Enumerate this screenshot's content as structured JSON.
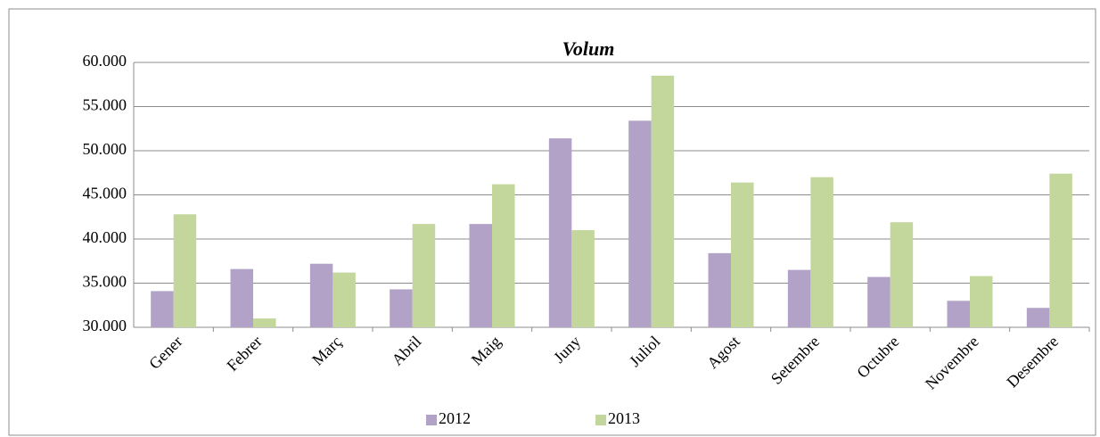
{
  "chart_data": {
    "type": "bar",
    "title": "Volum",
    "categories": [
      "Gener",
      "Febrer",
      "Març",
      "Abril",
      "Maig",
      "Juny",
      "Juliol",
      "Agost",
      "Setembre",
      "Octubre",
      "Novembre",
      "Desembre"
    ],
    "series": [
      {
        "name": "2012",
        "color": "#b3a2c7",
        "values": [
          34100,
          36600,
          37200,
          34300,
          41700,
          51400,
          53400,
          38400,
          36500,
          35700,
          33000,
          32200
        ]
      },
      {
        "name": "2013",
        "color": "#c3d69b",
        "values": [
          42800,
          31000,
          36200,
          41700,
          46200,
          41000,
          58500,
          46400,
          47000,
          41900,
          35800,
          47400
        ]
      }
    ],
    "ylim": [
      30000,
      60000
    ],
    "yticks": [
      {
        "value": 30000,
        "label": "30.000"
      },
      {
        "value": 35000,
        "label": "35.000"
      },
      {
        "value": 40000,
        "label": "40.000"
      },
      {
        "value": 45000,
        "label": "45.000"
      },
      {
        "value": 50000,
        "label": "50.000"
      },
      {
        "value": 55000,
        "label": "55.000"
      },
      {
        "value": 60000,
        "label": "60.000"
      }
    ],
    "grid": true,
    "legend": "bottom"
  }
}
